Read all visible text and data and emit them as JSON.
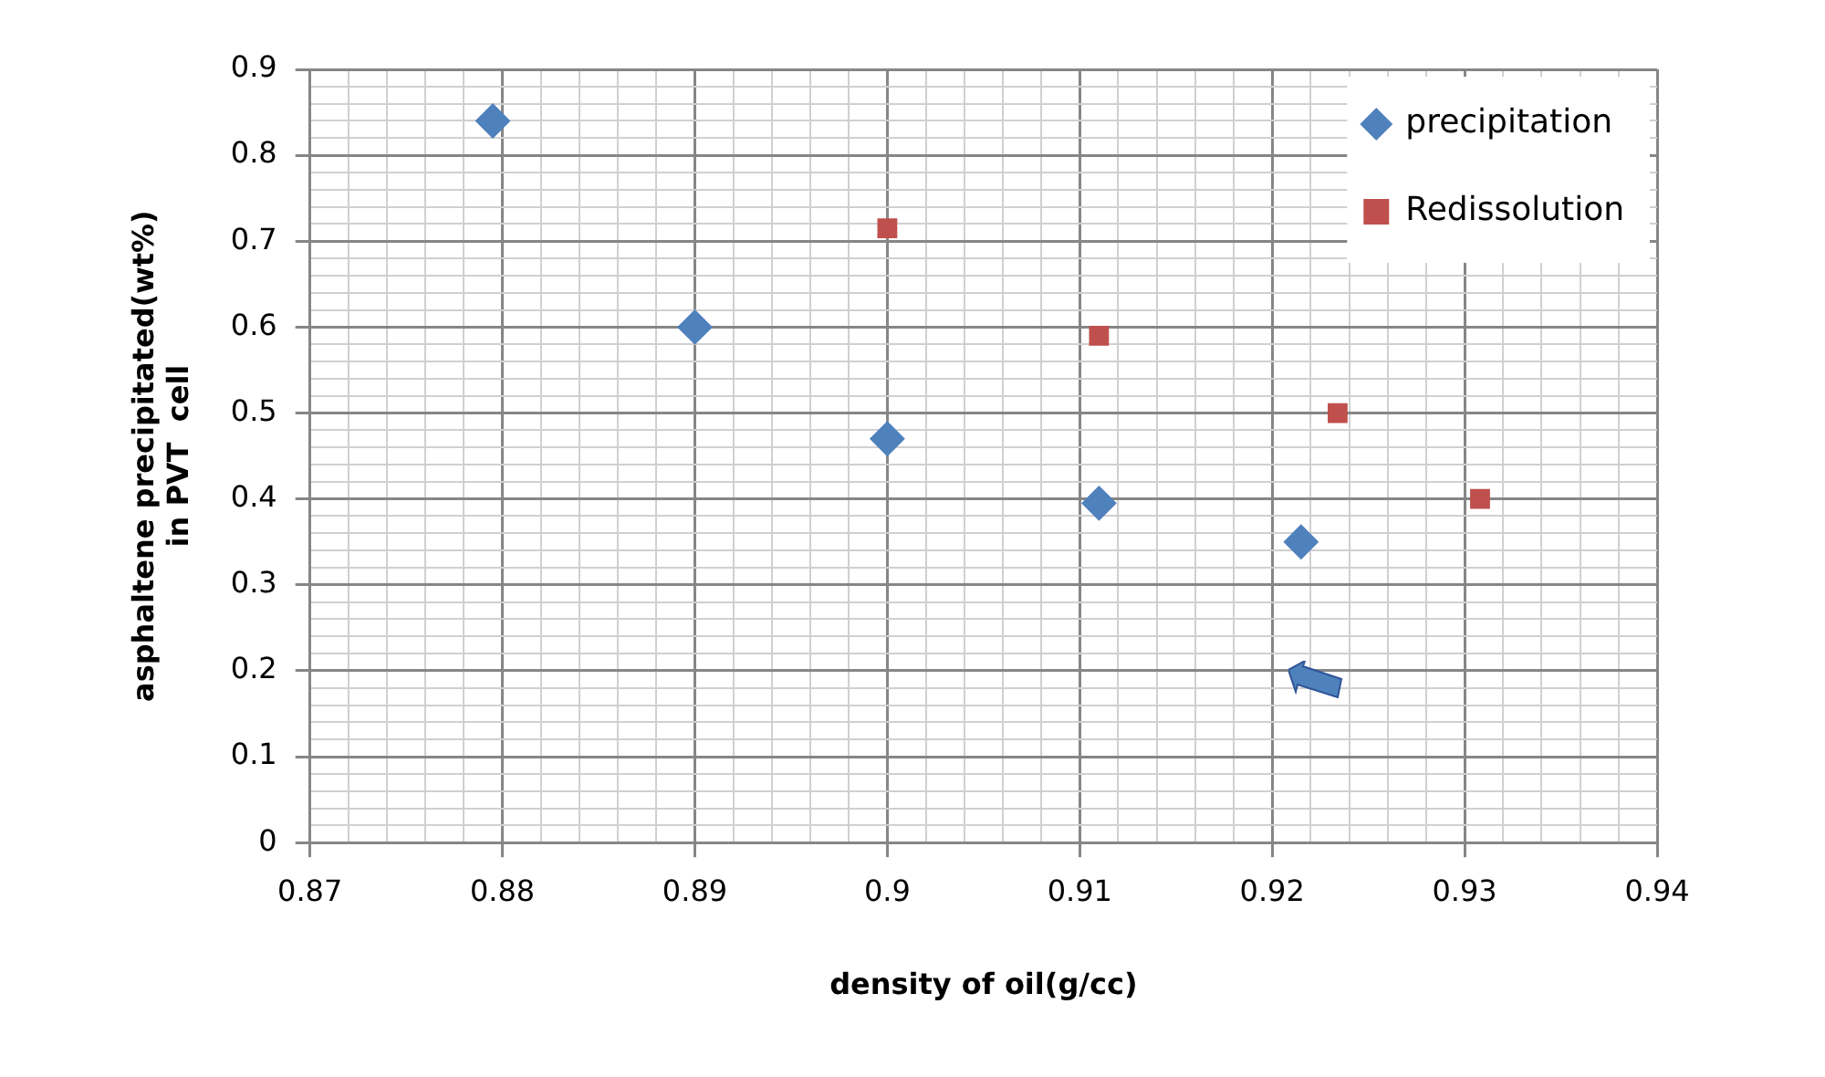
{
  "chart_data": {
    "type": "scatter",
    "xlabel": "density of oil(g/cc)",
    "ylabel": "asphaltene precipitated(wt%) in PVT  cell",
    "series": [
      {
        "name": "precipitation",
        "color": "#4f81bd",
        "marker": "diamond",
        "x": [
          0.8795,
          0.89,
          0.9,
          0.911,
          0.9215
        ],
        "values": [
          0.84,
          0.6,
          0.47,
          0.395,
          0.35
        ]
      },
      {
        "name": "Redissolution",
        "color": "#c0504d",
        "marker": "square",
        "x": [
          0.9,
          0.911,
          0.9234,
          0.9308
        ],
        "values": [
          0.715,
          0.59,
          0.5,
          0.4
        ]
      }
    ],
    "xlim": [
      0.87,
      0.94
    ],
    "xticks": [
      0.87,
      {
        "value": 0.872,
        "label": null
      },
      {
        "value": 0.874,
        "label": null
      },
      {
        "value": 0.876,
        "label": null
      },
      {
        "value": 0.878,
        "label": null
      },
      0.88,
      {
        "value": 0.882,
        "label": null
      },
      {
        "value": 0.884,
        "label": null
      },
      {
        "value": 0.886,
        "label": null
      },
      {
        "value": 0.888,
        "label": null
      },
      0.89,
      {
        "value": 0.892,
        "label": null
      },
      {
        "value": 0.894,
        "label": null
      },
      {
        "value": 0.896,
        "label": null
      },
      {
        "value": 0.898,
        "label": null
      },
      0.9,
      {
        "value": 0.902,
        "label": null
      },
      {
        "value": 0.904,
        "label": null
      },
      {
        "value": 0.906,
        "label": null
      },
      {
        "value": 0.908,
        "label": null
      },
      0.91,
      {
        "value": 0.912,
        "label": null
      },
      {
        "value": 0.914,
        "label": null
      },
      {
        "value": 0.916,
        "label": null
      },
      {
        "value": 0.918,
        "label": null
      },
      0.92,
      {
        "value": 0.922,
        "label": null
      },
      {
        "value": 0.924,
        "label": null
      },
      {
        "value": 0.926,
        "label": null
      },
      {
        "value": 0.928,
        "label": null
      },
      0.93,
      {
        "value": 0.932,
        "label": null
      },
      {
        "value": 0.934,
        "label": null
      },
      {
        "value": 0.936,
        "label": null
      },
      {
        "value": 0.938,
        "label": null
      },
      0.94
    ],
    "ylim": [
      0,
      0.9
    ],
    "yticks": [
      0,
      {
        "value": 0.02,
        "label": null
      },
      {
        "value": 0.04,
        "label": null
      },
      {
        "value": 0.06,
        "label": null
      },
      {
        "value": 0.08,
        "label": null
      },
      0.1,
      {
        "value": 0.12,
        "label": null
      },
      {
        "value": 0.14,
        "label": null
      },
      {
        "value": 0.16,
        "label": null
      },
      {
        "value": 0.18,
        "label": null
      },
      0.2,
      {
        "value": 0.22,
        "label": null
      },
      {
        "value": 0.24,
        "label": null
      },
      {
        "value": 0.26,
        "label": null
      },
      {
        "value": 0.28,
        "label": null
      },
      0.3,
      {
        "value": 0.32,
        "label": null
      },
      {
        "value": 0.34,
        "label": null
      },
      {
        "value": 0.36,
        "label": null
      },
      {
        "value": 0.38,
        "label": null
      },
      0.4,
      {
        "value": 0.42,
        "label": null
      },
      {
        "value": 0.44,
        "label": null
      },
      {
        "value": 0.46,
        "label": null
      },
      {
        "value": 0.48,
        "label": null
      },
      0.5,
      {
        "value": 0.52,
        "label": null
      },
      {
        "value": 0.54,
        "label": null
      },
      {
        "value": 0.56,
        "label": null
      },
      {
        "value": 0.58,
        "label": null
      },
      0.6,
      {
        "value": 0.62,
        "label": null
      },
      {
        "value": 0.64,
        "label": null
      },
      {
        "value": 0.66,
        "label": null
      },
      {
        "value": 0.68,
        "label": null
      },
      0.7,
      {
        "value": 0.72,
        "label": null
      },
      {
        "value": 0.74,
        "label": null
      },
      {
        "value": 0.76,
        "label": null
      },
      {
        "value": 0.78,
        "label": null
      },
      0.8,
      {
        "value": 0.82,
        "label": null
      },
      {
        "value": 0.84,
        "label": null
      },
      {
        "value": 0.86,
        "label": null
      },
      {
        "value": 0.88,
        "label": null
      },
      0.9
    ],
    "grid": true,
    "legend": "top right"
  }
}
